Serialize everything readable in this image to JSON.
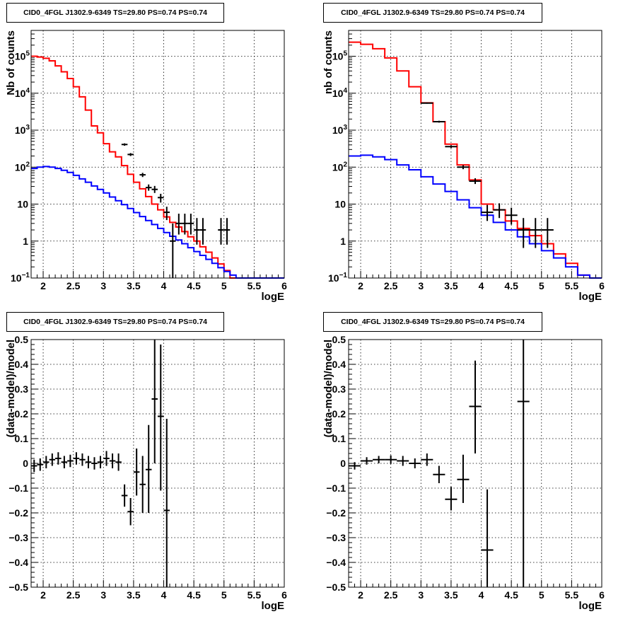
{
  "panels": [
    {
      "title": "CID0_4FGL J1302.9-6349 TS=29.80 PS=0.74 PS=0.74"
    },
    {
      "title": "CID0_4FGL J1302.9-6349 TS=29.80 PS=0.74 PS=0.74"
    },
    {
      "title": "CID0_4FGL J1302.9-6349 TS=29.80 PS=0.74 PS=0.74"
    },
    {
      "title": "CID0_4FGL J1302.9-6349 TS=29.80 PS=0.74 PS=0.74"
    }
  ],
  "chart_data": [
    {
      "type": "line",
      "title": "CID0_4FGL J1302.9-6349 TS=29.80 PS=0.74 PS=0.74",
      "xlabel": "logE",
      "ylabel": "Nb of counts",
      "xlim": [
        1.8,
        6.0
      ],
      "ylim": [
        0.1,
        500000
      ],
      "yscale": "log",
      "grid": true,
      "xticks": [
        "2",
        "2.5",
        "3",
        "3.5",
        "4",
        "4.5",
        "5",
        "5.5",
        "6"
      ],
      "yticks": [
        {
          "v": 0.1,
          "label": "10^-1"
        },
        {
          "v": 1,
          "label": "1"
        },
        {
          "v": 10,
          "label": "10"
        },
        {
          "v": 100,
          "label": "10^2"
        },
        {
          "v": 1000,
          "label": "10^3"
        },
        {
          "v": 10000,
          "label": "10^4"
        },
        {
          "v": 100000,
          "label": "10^5"
        }
      ],
      "series": [
        {
          "color": "#ff0000",
          "style": "step",
          "edges": [
            1.8,
            1.9,
            2.0,
            2.1,
            2.2,
            2.3,
            2.4,
            2.5,
            2.6,
            2.7,
            2.8,
            2.9,
            3.0,
            3.1,
            3.2,
            3.3,
            3.4,
            3.5,
            3.6,
            3.7,
            3.8,
            3.9,
            4.0,
            4.1,
            4.2,
            4.3,
            4.4,
            4.5,
            4.6,
            4.7,
            4.8,
            4.9,
            5.0,
            5.1,
            5.2,
            5.3,
            5.4,
            5.5,
            5.6,
            5.7,
            5.8,
            5.9,
            6.0
          ],
          "values": [
            100000,
            95000,
            88000,
            75000,
            55000,
            38000,
            25000,
            15000,
            8000,
            3500,
            1300,
            850,
            430,
            260,
            190,
            110,
            64,
            39,
            26,
            16,
            10,
            7,
            4.5,
            3.2,
            2.4,
            1.8,
            1.3,
            1.0,
            0.7,
            0.5,
            0.35,
            0.24,
            0.16,
            0.1,
            0.1,
            0.1,
            0.1,
            0.1,
            0.1,
            0.1,
            0.1,
            0.1
          ]
        },
        {
          "color": "#0000ff",
          "style": "step",
          "edges": [
            1.8,
            1.9,
            2.0,
            2.1,
            2.2,
            2.3,
            2.4,
            2.5,
            2.6,
            2.7,
            2.8,
            2.9,
            3.0,
            3.1,
            3.2,
            3.3,
            3.4,
            3.5,
            3.6,
            3.7,
            3.8,
            3.9,
            4.0,
            4.1,
            4.2,
            4.3,
            4.4,
            4.5,
            4.6,
            4.7,
            4.8,
            4.9,
            5.0,
            5.1,
            5.2,
            5.3,
            5.4,
            5.5,
            5.6,
            5.7,
            5.8,
            5.9,
            6.0
          ],
          "values": [
            92,
            100,
            104,
            100,
            92,
            82,
            72,
            60,
            48,
            39,
            31,
            25,
            20,
            15.5,
            12.3,
            9.7,
            7.6,
            5.9,
            4.6,
            3.6,
            2.8,
            2.2,
            1.7,
            1.35,
            1.07,
            0.85,
            0.66,
            0.52,
            0.41,
            0.32,
            0.25,
            0.19,
            0.15,
            0.12,
            0.1,
            0.1,
            0.1,
            0.1,
            0.1,
            0.1,
            0.1,
            0.1
          ]
        },
        {
          "color": "#000000",
          "style": "errorbar",
          "points": [
            {
              "x": 3.35,
              "y": 410,
              "xe": 0.05,
              "ylo": 380,
              "yhi": 440
            },
            {
              "x": 3.45,
              "y": 220,
              "xe": 0.05,
              "ylo": 200,
              "yhi": 240
            },
            {
              "x": 3.65,
              "y": 62,
              "xe": 0.05,
              "ylo": 54,
              "yhi": 70
            },
            {
              "x": 3.75,
              "y": 28,
              "xe": 0.05,
              "ylo": 23,
              "yhi": 34
            },
            {
              "x": 3.85,
              "y": 25,
              "xe": 0.05,
              "ylo": 20,
              "yhi": 31
            },
            {
              "x": 3.95,
              "y": 15,
              "xe": 0.05,
              "ylo": 11,
              "yhi": 19
            },
            {
              "x": 4.05,
              "y": 6,
              "xe": 0.05,
              "ylo": 3.7,
              "yhi": 8.5
            },
            {
              "x": 4.15,
              "y": 1,
              "xe": 0.05,
              "ylo": 0.1,
              "yhi": 3
            },
            {
              "x": 4.25,
              "y": 3,
              "xe": 0.05,
              "ylo": 1.5,
              "yhi": 5.5
            },
            {
              "x": 4.35,
              "y": 3,
              "xe": 0.05,
              "ylo": 1.5,
              "yhi": 5.5
            },
            {
              "x": 4.45,
              "y": 3,
              "xe": 0.05,
              "ylo": 1.5,
              "yhi": 5.5
            },
            {
              "x": 4.55,
              "y": 2,
              "xe": 0.05,
              "ylo": 0.8,
              "yhi": 4.2
            },
            {
              "x": 4.65,
              "y": 2,
              "xe": 0.05,
              "ylo": 0.8,
              "yhi": 4.2
            },
            {
              "x": 4.95,
              "y": 2,
              "xe": 0.05,
              "ylo": 0.8,
              "yhi": 4.2
            },
            {
              "x": 5.05,
              "y": 2,
              "xe": 0.05,
              "ylo": 0.8,
              "yhi": 4.2
            }
          ]
        }
      ]
    },
    {
      "type": "line",
      "title": "CID0_4FGL J1302.9-6349 TS=29.80 PS=0.74 PS=0.74",
      "xlabel": "logE",
      "ylabel": "nb of counts",
      "xlim": [
        1.8,
        6.0
      ],
      "ylim": [
        0.1,
        500000
      ],
      "yscale": "log",
      "grid": true,
      "xticks": [
        "2",
        "2.5",
        "3",
        "3.5",
        "4",
        "4.5",
        "5",
        "5.5",
        "6"
      ],
      "yticks": [
        {
          "v": 0.1,
          "label": "10^-1"
        },
        {
          "v": 1,
          "label": "1"
        },
        {
          "v": 10,
          "label": "10"
        },
        {
          "v": 100,
          "label": "10^2"
        },
        {
          "v": 1000,
          "label": "10^3"
        },
        {
          "v": 10000,
          "label": "10^4"
        },
        {
          "v": 100000,
          "label": "10^5"
        }
      ],
      "series": [
        {
          "color": "#ff0000",
          "style": "step",
          "edges": [
            1.8,
            2.0,
            2.2,
            2.4,
            2.6,
            2.8,
            3.0,
            3.2,
            3.4,
            3.6,
            3.8,
            4.0,
            4.2,
            4.4,
            4.6,
            4.8,
            5.0,
            5.2,
            5.4,
            5.6,
            5.8,
            6.0
          ],
          "values": [
            240000,
            210000,
            160000,
            90000,
            40000,
            15000,
            5500,
            1700,
            420,
            115,
            45,
            10,
            7,
            3.5,
            2.2,
            1.4,
            0.85,
            0.45,
            0.25,
            0.12,
            0.1
          ]
        },
        {
          "color": "#0000ff",
          "style": "step",
          "edges": [
            1.8,
            2.0,
            2.2,
            2.4,
            2.6,
            2.8,
            3.0,
            3.2,
            3.4,
            3.6,
            3.8,
            4.0,
            4.2,
            4.4,
            4.6,
            4.8,
            5.0,
            5.2,
            5.4,
            5.6,
            5.8,
            6.0
          ],
          "values": [
            200,
            210,
            190,
            160,
            115,
            85,
            55,
            35,
            22,
            13,
            8,
            5,
            3.2,
            2,
            1.3,
            0.85,
            0.55,
            0.35,
            0.2,
            0.12,
            0.1
          ]
        },
        {
          "color": "#000000",
          "style": "errorbar",
          "points": [
            {
              "x": 3.1,
              "y": 5400,
              "xe": 0.1,
              "ylo": 5200,
              "yhi": 5600
            },
            {
              "x": 3.3,
              "y": 1700,
              "xe": 0.1,
              "ylo": 1600,
              "yhi": 1800
            },
            {
              "x": 3.5,
              "y": 360,
              "xe": 0.1,
              "ylo": 330,
              "yhi": 390
            },
            {
              "x": 3.7,
              "y": 100,
              "xe": 0.1,
              "ylo": 88,
              "yhi": 113
            },
            {
              "x": 3.9,
              "y": 42,
              "xe": 0.1,
              "ylo": 35,
              "yhi": 50
            },
            {
              "x": 4.1,
              "y": 6,
              "xe": 0.1,
              "ylo": 3.5,
              "yhi": 9.5
            },
            {
              "x": 4.3,
              "y": 7,
              "xe": 0.1,
              "ylo": 4.2,
              "yhi": 10.5
            },
            {
              "x": 4.5,
              "y": 5,
              "xe": 0.1,
              "ylo": 2.8,
              "yhi": 8
            },
            {
              "x": 4.7,
              "y": 2,
              "xe": 0.1,
              "ylo": 0.65,
              "yhi": 4.2
            },
            {
              "x": 4.9,
              "y": 2,
              "xe": 0.1,
              "ylo": 0.65,
              "yhi": 4.2
            },
            {
              "x": 5.1,
              "y": 2,
              "xe": 0.1,
              "ylo": 0.65,
              "yhi": 4.2
            }
          ]
        }
      ]
    },
    {
      "type": "scatter",
      "title": "CID0_4FGL J1302.9-6349 TS=29.80 PS=0.74 PS=0.74",
      "xlabel": "logE",
      "ylabel": "(data-model)/model",
      "xlim": [
        1.8,
        6.0
      ],
      "ylim": [
        -0.5,
        0.5
      ],
      "yscale": "linear",
      "grid": true,
      "xticks": [
        "2",
        "2.5",
        "3",
        "3.5",
        "4",
        "4.5",
        "5",
        "5.5",
        "6"
      ],
      "yticks": [
        {
          "v": -0.5,
          "label": "−0.5"
        },
        {
          "v": -0.4,
          "label": "−0.4"
        },
        {
          "v": -0.3,
          "label": "−0.3"
        },
        {
          "v": -0.2,
          "label": "−0.2"
        },
        {
          "v": -0.1,
          "label": "−0.1"
        },
        {
          "v": 0,
          "label": "0"
        },
        {
          "v": 0.1,
          "label": "0.1"
        },
        {
          "v": 0.2,
          "label": "0.2"
        },
        {
          "v": 0.3,
          "label": "0.3"
        },
        {
          "v": 0.4,
          "label": "0.4"
        },
        {
          "v": 0.5,
          "label": "0.5"
        }
      ],
      "series": [
        {
          "color": "#000000",
          "style": "errorbar",
          "points": [
            {
              "x": 1.85,
              "y": -0.01,
              "xe": 0.05,
              "ylo": -0.035,
              "yhi": 0.015
            },
            {
              "x": 1.95,
              "y": -0.005,
              "xe": 0.05,
              "ylo": -0.03,
              "yhi": 0.02
            },
            {
              "x": 2.05,
              "y": 0.005,
              "xe": 0.05,
              "ylo": -0.02,
              "yhi": 0.03
            },
            {
              "x": 2.15,
              "y": 0.015,
              "xe": 0.05,
              "ylo": -0.01,
              "yhi": 0.04
            },
            {
              "x": 2.25,
              "y": 0.02,
              "xe": 0.05,
              "ylo": -0.005,
              "yhi": 0.045
            },
            {
              "x": 2.35,
              "y": 0.005,
              "xe": 0.05,
              "ylo": -0.02,
              "yhi": 0.03
            },
            {
              "x": 2.45,
              "y": 0.01,
              "xe": 0.05,
              "ylo": -0.015,
              "yhi": 0.035
            },
            {
              "x": 2.55,
              "y": 0.02,
              "xe": 0.05,
              "ylo": -0.005,
              "yhi": 0.045
            },
            {
              "x": 2.65,
              "y": 0.015,
              "xe": 0.05,
              "ylo": -0.01,
              "yhi": 0.04
            },
            {
              "x": 2.75,
              "y": 0.005,
              "xe": 0.05,
              "ylo": -0.02,
              "yhi": 0.03
            },
            {
              "x": 2.85,
              "y": 0.0,
              "xe": 0.05,
              "ylo": -0.025,
              "yhi": 0.025
            },
            {
              "x": 2.95,
              "y": 0.005,
              "xe": 0.05,
              "ylo": -0.02,
              "yhi": 0.03
            },
            {
              "x": 3.05,
              "y": 0.02,
              "xe": 0.05,
              "ylo": -0.01,
              "yhi": 0.05
            },
            {
              "x": 3.15,
              "y": 0.01,
              "xe": 0.05,
              "ylo": -0.02,
              "yhi": 0.04
            },
            {
              "x": 3.25,
              "y": 0.005,
              "xe": 0.05,
              "ylo": -0.03,
              "yhi": 0.04
            },
            {
              "x": 3.35,
              "y": -0.13,
              "xe": 0.05,
              "ylo": -0.175,
              "yhi": -0.085
            },
            {
              "x": 3.45,
              "y": -0.195,
              "xe": 0.05,
              "ylo": -0.25,
              "yhi": -0.14
            },
            {
              "x": 3.55,
              "y": -0.035,
              "xe": 0.05,
              "ylo": -0.13,
              "yhi": 0.06
            },
            {
              "x": 3.65,
              "y": -0.085,
              "xe": 0.05,
              "ylo": -0.2,
              "yhi": 0.03
            },
            {
              "x": 3.75,
              "y": -0.025,
              "xe": 0.05,
              "ylo": -0.2,
              "yhi": 0.155
            },
            {
              "x": 3.85,
              "y": 0.26,
              "xe": 0.05,
              "ylo": 0.0,
              "yhi": 0.5
            },
            {
              "x": 3.95,
              "y": 0.19,
              "xe": 0.05,
              "ylo": -0.11,
              "yhi": 0.48
            },
            {
              "x": 4.05,
              "y": -0.19,
              "xe": 0.05,
              "ylo": -0.5,
              "yhi": 0.18
            }
          ]
        }
      ]
    },
    {
      "type": "scatter",
      "title": "CID0_4FGL J1302.9-6349 TS=29.80 PS=0.74 PS=0.74",
      "xlabel": "logE",
      "ylabel": "(data-model)/model",
      "xlim": [
        1.8,
        6.0
      ],
      "ylim": [
        -0.5,
        0.5
      ],
      "yscale": "linear",
      "grid": true,
      "xticks": [
        "2",
        "2.5",
        "3",
        "3.5",
        "4",
        "4.5",
        "5",
        "5.5",
        "6"
      ],
      "yticks": [
        {
          "v": -0.5,
          "label": "−0.5"
        },
        {
          "v": -0.4,
          "label": "−0.4"
        },
        {
          "v": -0.3,
          "label": "−0.3"
        },
        {
          "v": -0.2,
          "label": "−0.2"
        },
        {
          "v": -0.1,
          "label": "−0.1"
        },
        {
          "v": 0,
          "label": "0"
        },
        {
          "v": 0.1,
          "label": "0.1"
        },
        {
          "v": 0.2,
          "label": "0.2"
        },
        {
          "v": 0.3,
          "label": "0.3"
        },
        {
          "v": 0.4,
          "label": "0.4"
        },
        {
          "v": 0.5,
          "label": "0.5"
        }
      ],
      "series": [
        {
          "color": "#000000",
          "style": "errorbar",
          "points": [
            {
              "x": 1.9,
              "y": -0.01,
              "xe": 0.1,
              "ylo": -0.025,
              "yhi": 0.005
            },
            {
              "x": 2.1,
              "y": 0.01,
              "xe": 0.1,
              "ylo": -0.005,
              "yhi": 0.025
            },
            {
              "x": 2.3,
              "y": 0.015,
              "xe": 0.1,
              "ylo": 0.0,
              "yhi": 0.03
            },
            {
              "x": 2.5,
              "y": 0.015,
              "xe": 0.1,
              "ylo": -0.002,
              "yhi": 0.032
            },
            {
              "x": 2.7,
              "y": 0.01,
              "xe": 0.1,
              "ylo": -0.01,
              "yhi": 0.03
            },
            {
              "x": 2.9,
              "y": 0.0,
              "xe": 0.1,
              "ylo": -0.02,
              "yhi": 0.02
            },
            {
              "x": 3.1,
              "y": 0.015,
              "xe": 0.1,
              "ylo": -0.01,
              "yhi": 0.04
            },
            {
              "x": 3.3,
              "y": -0.045,
              "xe": 0.1,
              "ylo": -0.08,
              "yhi": -0.01
            },
            {
              "x": 3.5,
              "y": -0.145,
              "xe": 0.1,
              "ylo": -0.19,
              "yhi": -0.095
            },
            {
              "x": 3.7,
              "y": -0.065,
              "xe": 0.1,
              "ylo": -0.16,
              "yhi": 0.035
            },
            {
              "x": 3.9,
              "y": 0.23,
              "xe": 0.1,
              "ylo": 0.04,
              "yhi": 0.415
            },
            {
              "x": 4.1,
              "y": -0.35,
              "xe": 0.1,
              "ylo": -0.5,
              "yhi": -0.105
            },
            {
              "x": 4.7,
              "y": 0.25,
              "xe": 0.1,
              "ylo": -0.5,
              "yhi": 0.5
            }
          ]
        }
      ]
    }
  ]
}
